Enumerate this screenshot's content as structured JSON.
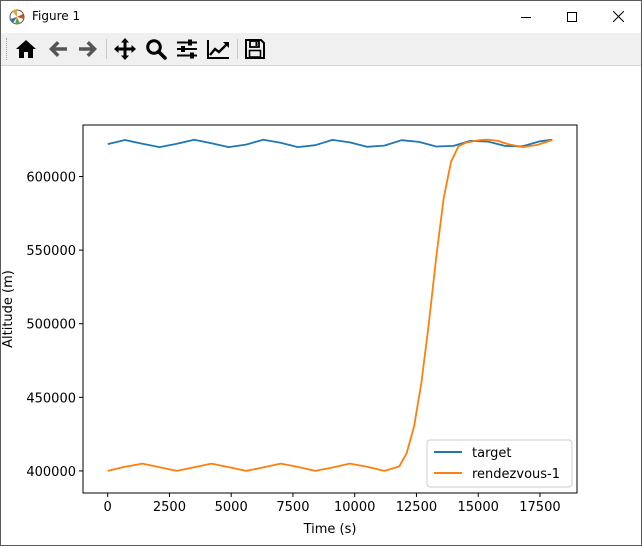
{
  "window": {
    "title": "Figure 1",
    "controls": [
      "minimize",
      "maximize",
      "close"
    ]
  },
  "toolbar": {
    "buttons": [
      {
        "name": "home",
        "icon": "home-icon"
      },
      {
        "name": "back",
        "icon": "arrow-left-icon"
      },
      {
        "name": "forward",
        "icon": "arrow-right-icon"
      },
      {
        "name": "pan",
        "icon": "move-icon"
      },
      {
        "name": "zoom",
        "icon": "magnifier-icon"
      },
      {
        "name": "configure-subplots",
        "icon": "sliders-icon"
      },
      {
        "name": "edit-axis",
        "icon": "line-chart-icon"
      },
      {
        "name": "save",
        "icon": "floppy-disk-icon"
      }
    ]
  },
  "chart_data": {
    "type": "line",
    "title": "",
    "xlabel": "Time (s)",
    "ylabel": "Altitude (m)",
    "xlim": [
      -1000,
      19000
    ],
    "ylim": [
      385000,
      635000
    ],
    "xticks": [
      0,
      2500,
      5000,
      7500,
      10000,
      12500,
      15000,
      17500
    ],
    "xtick_labels": [
      "0",
      "2500",
      "5000",
      "7500",
      "10000",
      "12500",
      "15000",
      "17500"
    ],
    "yticks": [
      400000,
      450000,
      500000,
      550000,
      600000
    ],
    "ytick_labels": [
      "400000",
      "450000",
      "500000",
      "550000",
      "600000"
    ],
    "grid": false,
    "legend_position": "lower right",
    "series": [
      {
        "name": "target",
        "color": "#1f77b4",
        "x": [
          0,
          700,
          1400,
          2100,
          2800,
          3500,
          4200,
          4900,
          5600,
          6300,
          7000,
          7700,
          8400,
          9100,
          9800,
          10500,
          11200,
          11900,
          12600,
          13300,
          14000,
          14700,
          15400,
          16100,
          16800,
          17500,
          18000
        ],
        "y": [
          622000,
          624800,
          622300,
          620000,
          622200,
          625000,
          622600,
          620000,
          621700,
          625000,
          622900,
          620000,
          621300,
          624900,
          623200,
          620200,
          621000,
          624700,
          623500,
          620400,
          620800,
          624300,
          623700,
          620700,
          620500,
          623900,
          625000
        ]
      },
      {
        "name": "rendezvous-1",
        "color": "#ff7f0e",
        "x": [
          0,
          700,
          1400,
          2100,
          2800,
          3500,
          4200,
          4900,
          5600,
          6300,
          7000,
          7700,
          8400,
          9100,
          9800,
          10500,
          11200,
          11800,
          12100,
          12400,
          12700,
          13000,
          13300,
          13600,
          13900,
          14200,
          14500,
          14800,
          15100,
          15400,
          15800,
          16200,
          16800,
          17400,
          18000
        ],
        "y": [
          400000,
          402800,
          405000,
          402500,
          400000,
          402500,
          405000,
          402600,
          400000,
          402400,
          405000,
          402700,
          400000,
          402300,
          405000,
          402800,
          400000,
          403000,
          412000,
          430000,
          460000,
          500000,
          545000,
          585000,
          610000,
          620500,
          623000,
          624000,
          624800,
          625000,
          624200,
          622000,
          620000,
          621500,
          624800
        ]
      }
    ]
  }
}
